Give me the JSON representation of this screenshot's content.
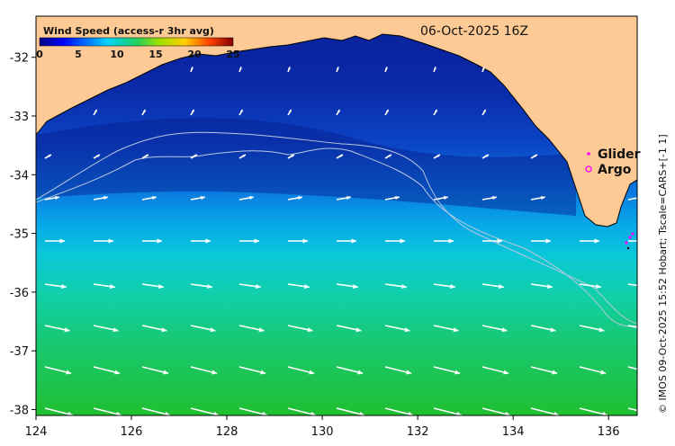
{
  "title": "Wind Speed (access-r 3hr avg)",
  "date": "06-Oct-2025 16Z",
  "credit": "© IMOS 09-Oct-2025 15:52 Hobart; Tscale=CARS+[-1 1]",
  "colorbar": {
    "ticks": [
      "0",
      "5",
      "10",
      "15",
      "20",
      "25"
    ],
    "min": 0,
    "max": 25
  },
  "legend": [
    {
      "label": "Glider",
      "marker": "dot",
      "color": "#ff00ff"
    },
    {
      "label": "Argo",
      "marker": "circle",
      "color": "#ff00ff"
    }
  ],
  "axes": {
    "lon_ticks": [
      "124",
      "126",
      "128",
      "130",
      "132",
      "134",
      "136"
    ],
    "lat_ticks": [
      "-32",
      "-33",
      "-34",
      "-35",
      "-36",
      "-37",
      "-38"
    ],
    "lon_range": [
      124,
      136.6
    ],
    "lat_range": [
      -38.1,
      -31.3
    ]
  },
  "colors": {
    "land": "#fdc994",
    "arrow": "#ffffff",
    "isobath": "#b8c8e0"
  }
}
